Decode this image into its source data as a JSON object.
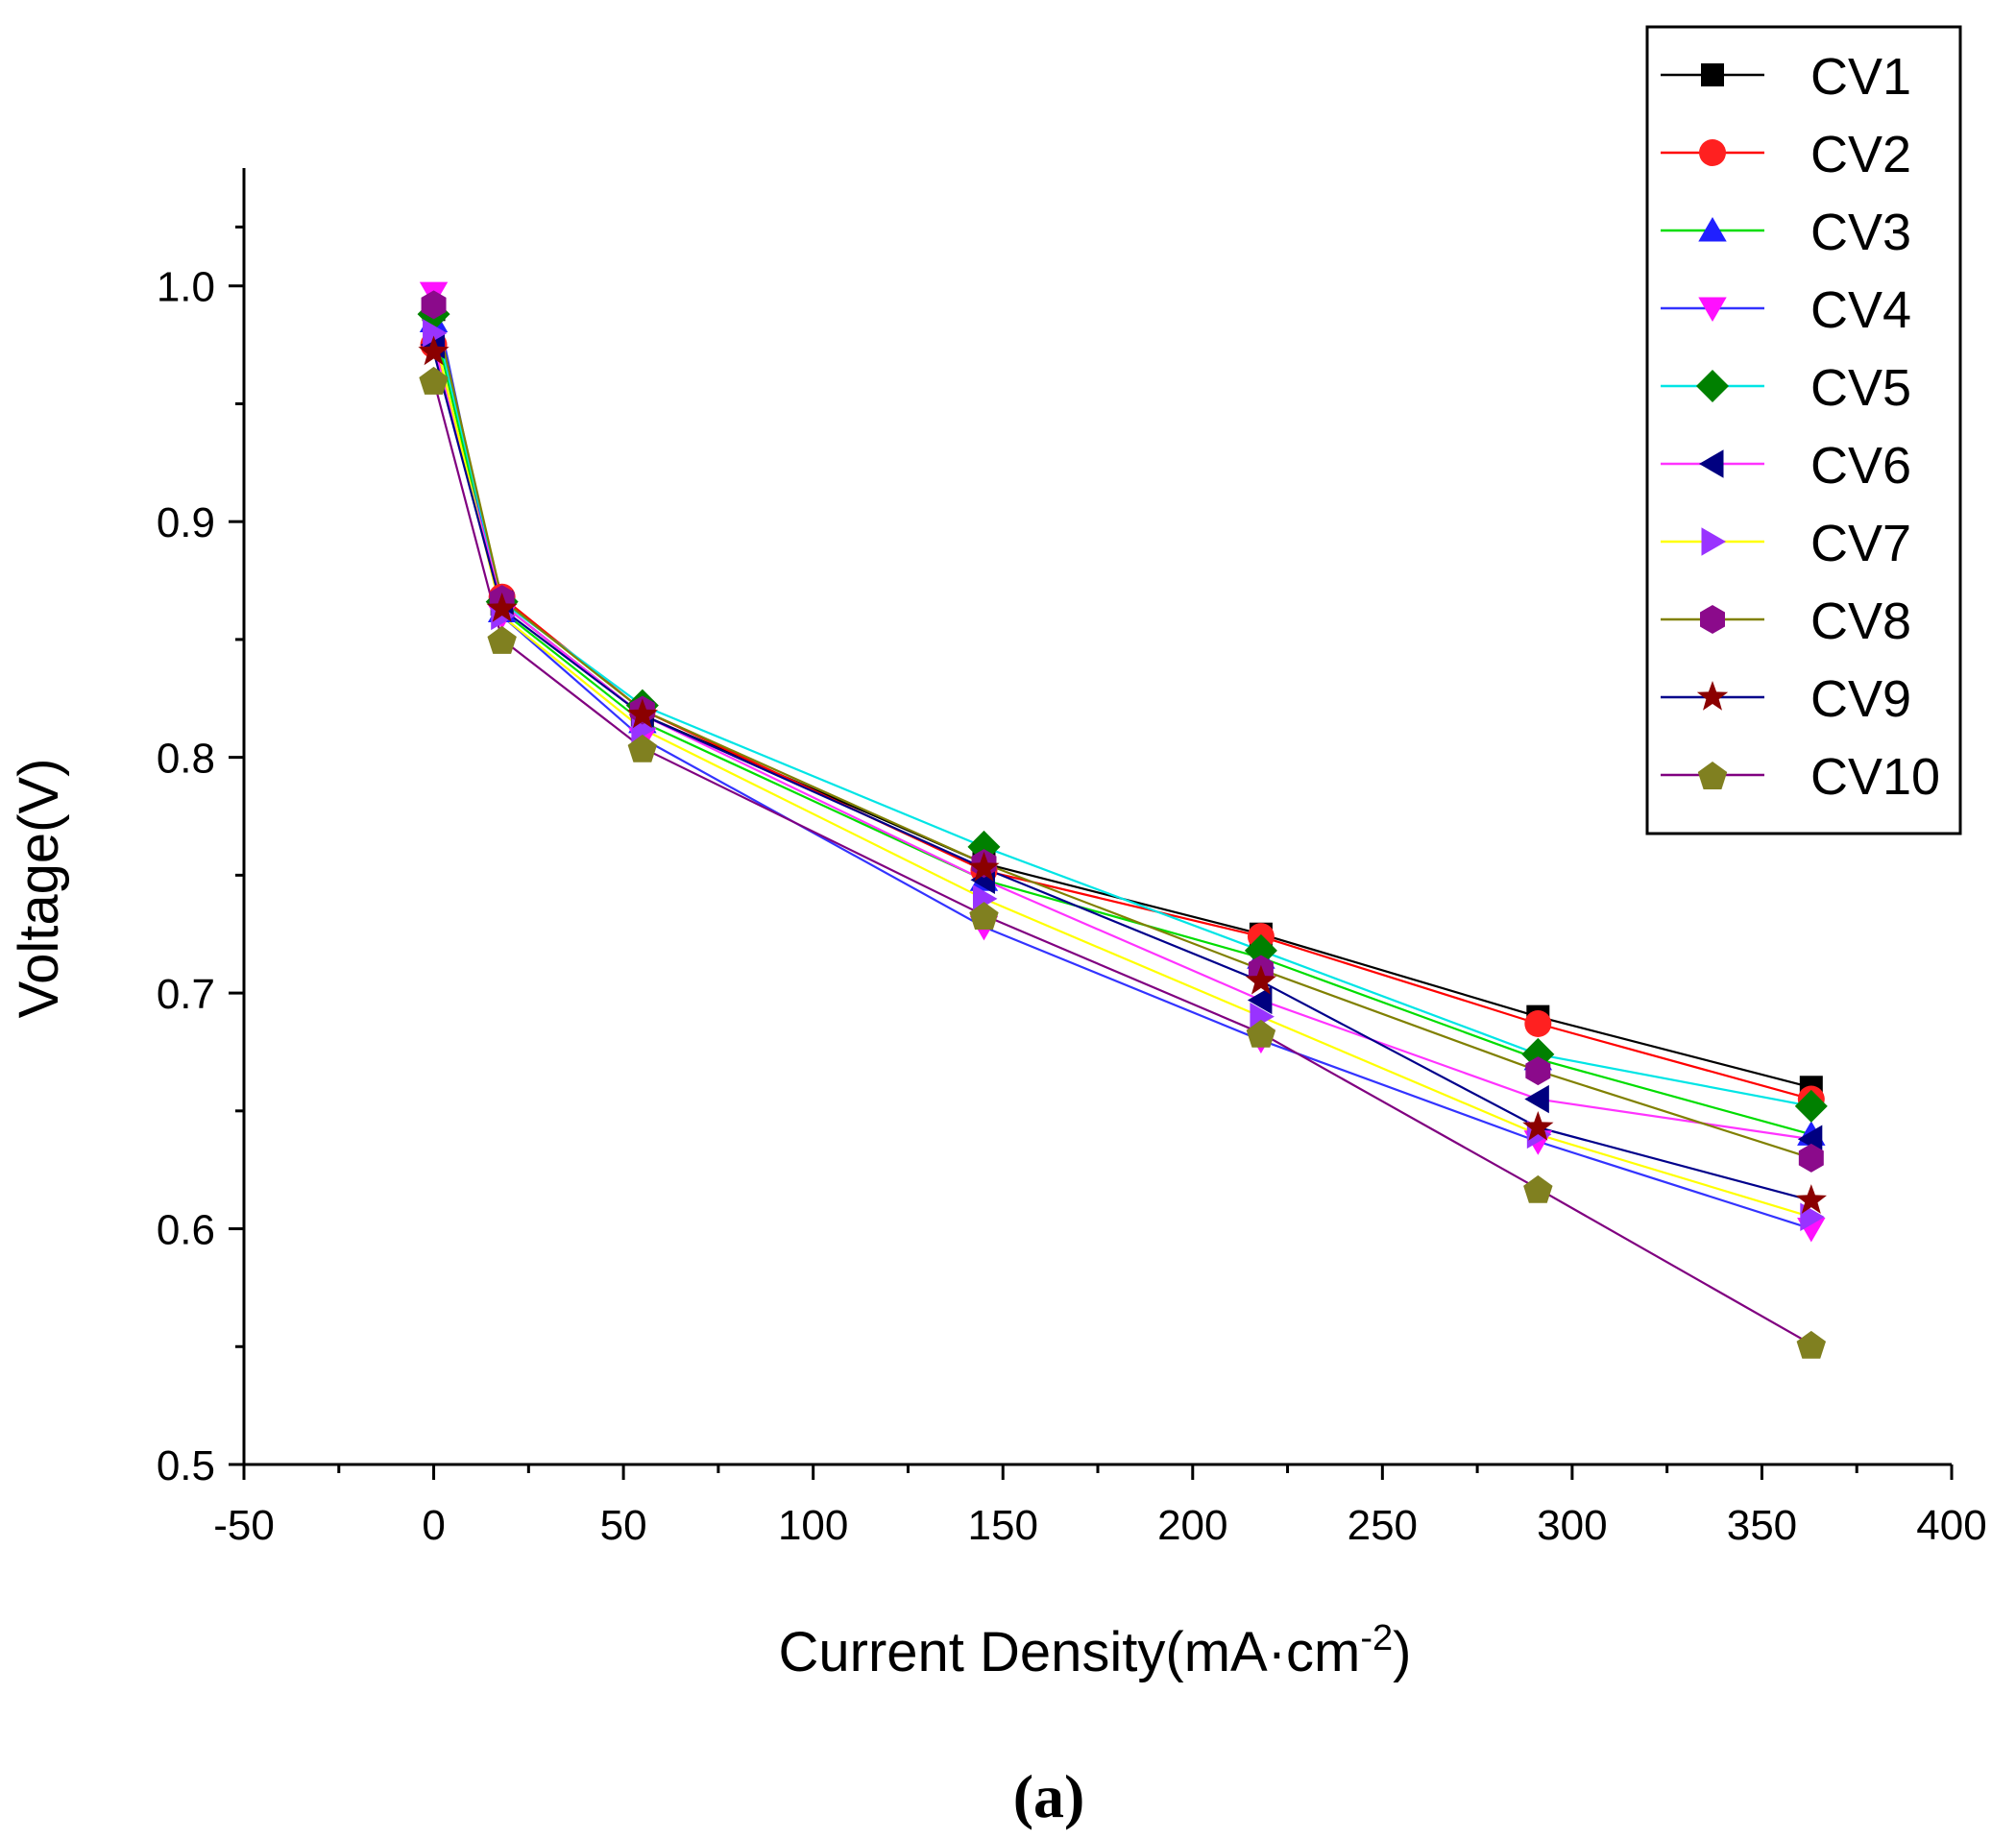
{
  "chart_data": {
    "type": "line",
    "title": "",
    "xlabel": "Current Density(mA·cm",
    "xlabel_superscript": "-2",
    "xlabel_suffix": ")",
    "ylabel": "Voltage(V)",
    "xlim": [
      -50,
      400
    ],
    "ylim": [
      0.5,
      1.05
    ],
    "xticks": [
      -50,
      0,
      50,
      100,
      150,
      200,
      250,
      300,
      350,
      400
    ],
    "xtick_labels": [
      "-50",
      "0",
      "50",
      "100",
      "150",
      "200",
      "250",
      "300",
      "350",
      "400"
    ],
    "yticks": [
      0.5,
      0.6,
      0.7,
      0.8,
      0.9,
      1.0
    ],
    "ytick_labels": [
      "0.5",
      "0.6",
      "0.7",
      "0.8",
      "0.9",
      "1.0"
    ],
    "x": [
      0,
      18,
      55,
      145,
      218,
      291,
      363
    ],
    "legend_position": "top-right",
    "caption": "(a)",
    "series": [
      {
        "name": "CV1",
        "line_color": "#000000",
        "marker_color": "#000000",
        "marker": "square",
        "values": [
          0.99,
          0.865,
          0.818,
          0.755,
          0.725,
          0.69,
          0.66
        ]
      },
      {
        "name": "CV2",
        "line_color": "#ff0000",
        "marker_color": "#ff2020",
        "marker": "circle",
        "values": [
          0.975,
          0.868,
          0.82,
          0.752,
          0.724,
          0.687,
          0.655
        ]
      },
      {
        "name": "CV3",
        "line_color": "#00dd00",
        "marker_color": "#2020ff",
        "marker": "triangle-up",
        "values": [
          0.985,
          0.862,
          0.815,
          0.748,
          0.715,
          0.672,
          0.64
        ]
      },
      {
        "name": "CV4",
        "line_color": "#3333ff",
        "marker_color": "#ff10ff",
        "marker": "triangle-down",
        "values": [
          0.997,
          0.86,
          0.808,
          0.728,
          0.68,
          0.637,
          0.6
        ]
      },
      {
        "name": "CV5",
        "line_color": "#00e5e5",
        "marker_color": "#008000",
        "marker": "diamond",
        "values": [
          0.988,
          0.866,
          0.822,
          0.762,
          0.718,
          0.674,
          0.652
        ]
      },
      {
        "name": "CV6",
        "line_color": "#ff33ff",
        "marker_color": "#000080",
        "marker": "triangle-left",
        "values": [
          0.975,
          0.865,
          0.818,
          0.748,
          0.697,
          0.655,
          0.638
        ]
      },
      {
        "name": "CV7",
        "line_color": "#ffff00",
        "marker_color": "#9933ff",
        "marker": "triangle-right",
        "values": [
          0.98,
          0.86,
          0.812,
          0.74,
          0.69,
          0.64,
          0.605
        ]
      },
      {
        "name": "CV8",
        "line_color": "#808000",
        "marker_color": "#8b0a8b",
        "marker": "hexagon",
        "values": [
          0.992,
          0.867,
          0.82,
          0.755,
          0.71,
          0.667,
          0.63
        ]
      },
      {
        "name": "CV9",
        "line_color": "#00008b",
        "marker_color": "#8b0000",
        "marker": "star",
        "values": [
          0.972,
          0.863,
          0.818,
          0.753,
          0.705,
          0.643,
          0.612
        ]
      },
      {
        "name": "CV10",
        "line_color": "#800080",
        "marker_color": "#808020",
        "marker": "pentagon",
        "values": [
          0.96,
          0.85,
          0.804,
          0.733,
          0.683,
          0.617,
          0.551
        ]
      }
    ]
  }
}
